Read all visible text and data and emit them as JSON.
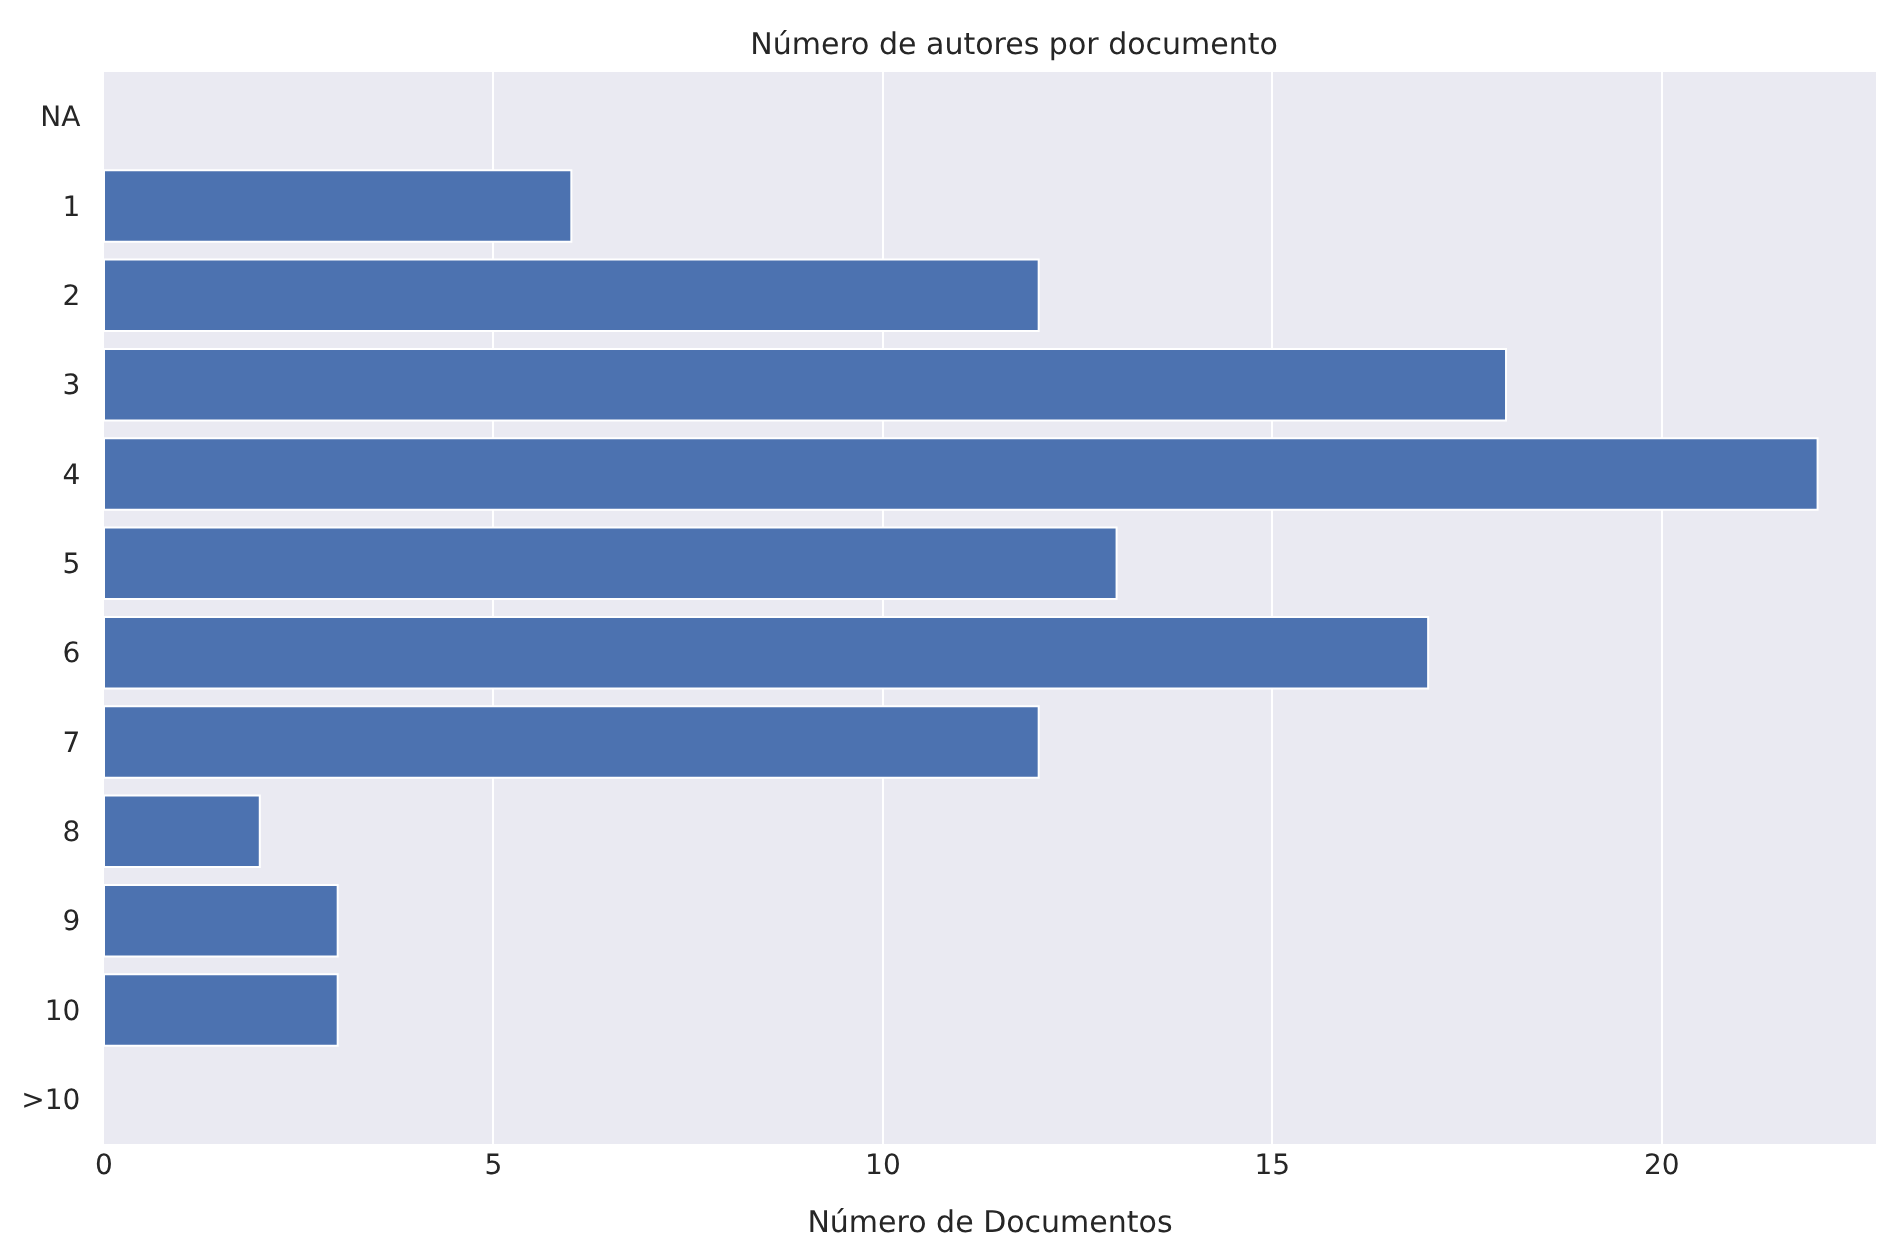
{
  "chart_data": {
    "type": "bar",
    "orientation": "horizontal",
    "title": "Número de autores por documento",
    "xlabel": "Número de Documentos",
    "categories": [
      "NA",
      "1",
      "2",
      "3",
      "4",
      "5",
      "6",
      "7",
      "8",
      "9",
      "10",
      ">10"
    ],
    "values": [
      0,
      6,
      12,
      18,
      22,
      13,
      17,
      12,
      2,
      3,
      3,
      0
    ],
    "color": "#4c72b0",
    "xlim": [
      0,
      22.75
    ],
    "xticks": [
      0,
      5,
      10,
      15,
      20
    ],
    "grid": "x",
    "legend": false
  }
}
